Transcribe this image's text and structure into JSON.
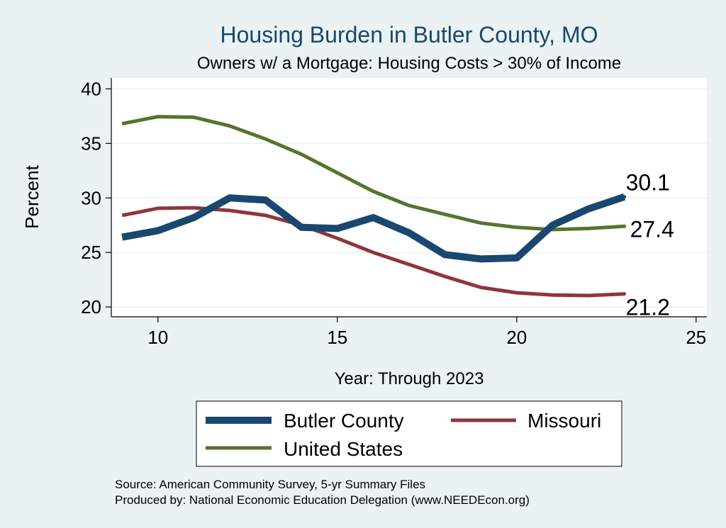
{
  "chart_data": {
    "type": "line",
    "title": "Housing Burden in Butler County, MO",
    "subtitle": "Owners w/ a Mortgage: Housing Costs > 30% of Income",
    "xlabel": "Year: Through 2023",
    "ylabel": "Percent",
    "xlim": [
      8.7,
      25.3
    ],
    "ylim": [
      19.1,
      41.0
    ],
    "xticks": [
      10,
      15,
      20,
      25
    ],
    "yticks": [
      20,
      25,
      30,
      35,
      40
    ],
    "grid": true,
    "x": [
      9,
      10,
      11,
      12,
      13,
      14,
      15,
      16,
      17,
      18,
      19,
      20,
      21,
      22,
      23
    ],
    "series": [
      {
        "name": "Butler County",
        "color": "#1a476f",
        "values": [
          26.4,
          27.0,
          28.2,
          30.0,
          29.8,
          27.3,
          27.2,
          28.2,
          26.8,
          24.8,
          24.4,
          24.5,
          27.5,
          29.0,
          30.1
        ],
        "end_label": "30.1"
      },
      {
        "name": "Missouri",
        "color": "#90353b",
        "values": [
          28.4,
          29.05,
          29.1,
          28.85,
          28.4,
          27.5,
          26.3,
          25.0,
          23.9,
          22.8,
          21.8,
          21.3,
          21.1,
          21.05,
          21.2
        ],
        "end_label": "21.2"
      },
      {
        "name": "United States",
        "color": "#55752f",
        "values": [
          36.8,
          37.45,
          37.4,
          36.6,
          35.4,
          34.0,
          32.3,
          30.6,
          29.3,
          28.5,
          27.7,
          27.3,
          27.1,
          27.2,
          27.4
        ],
        "end_label": "27.4"
      }
    ],
    "legend": {
      "position": "bottom",
      "entries": [
        "Butler County",
        "Missouri",
        "United States"
      ]
    },
    "notes": [
      "Source: American Community Survey, 5-yr Summary Files",
      "Produced by: National Economic Education Delegation (www.NEEDEcon.org)"
    ]
  },
  "colors": {
    "background": "#eaf2f3",
    "plot_background": "#ffffff",
    "title": "#1a476f",
    "grid": "#eaf2f3"
  }
}
